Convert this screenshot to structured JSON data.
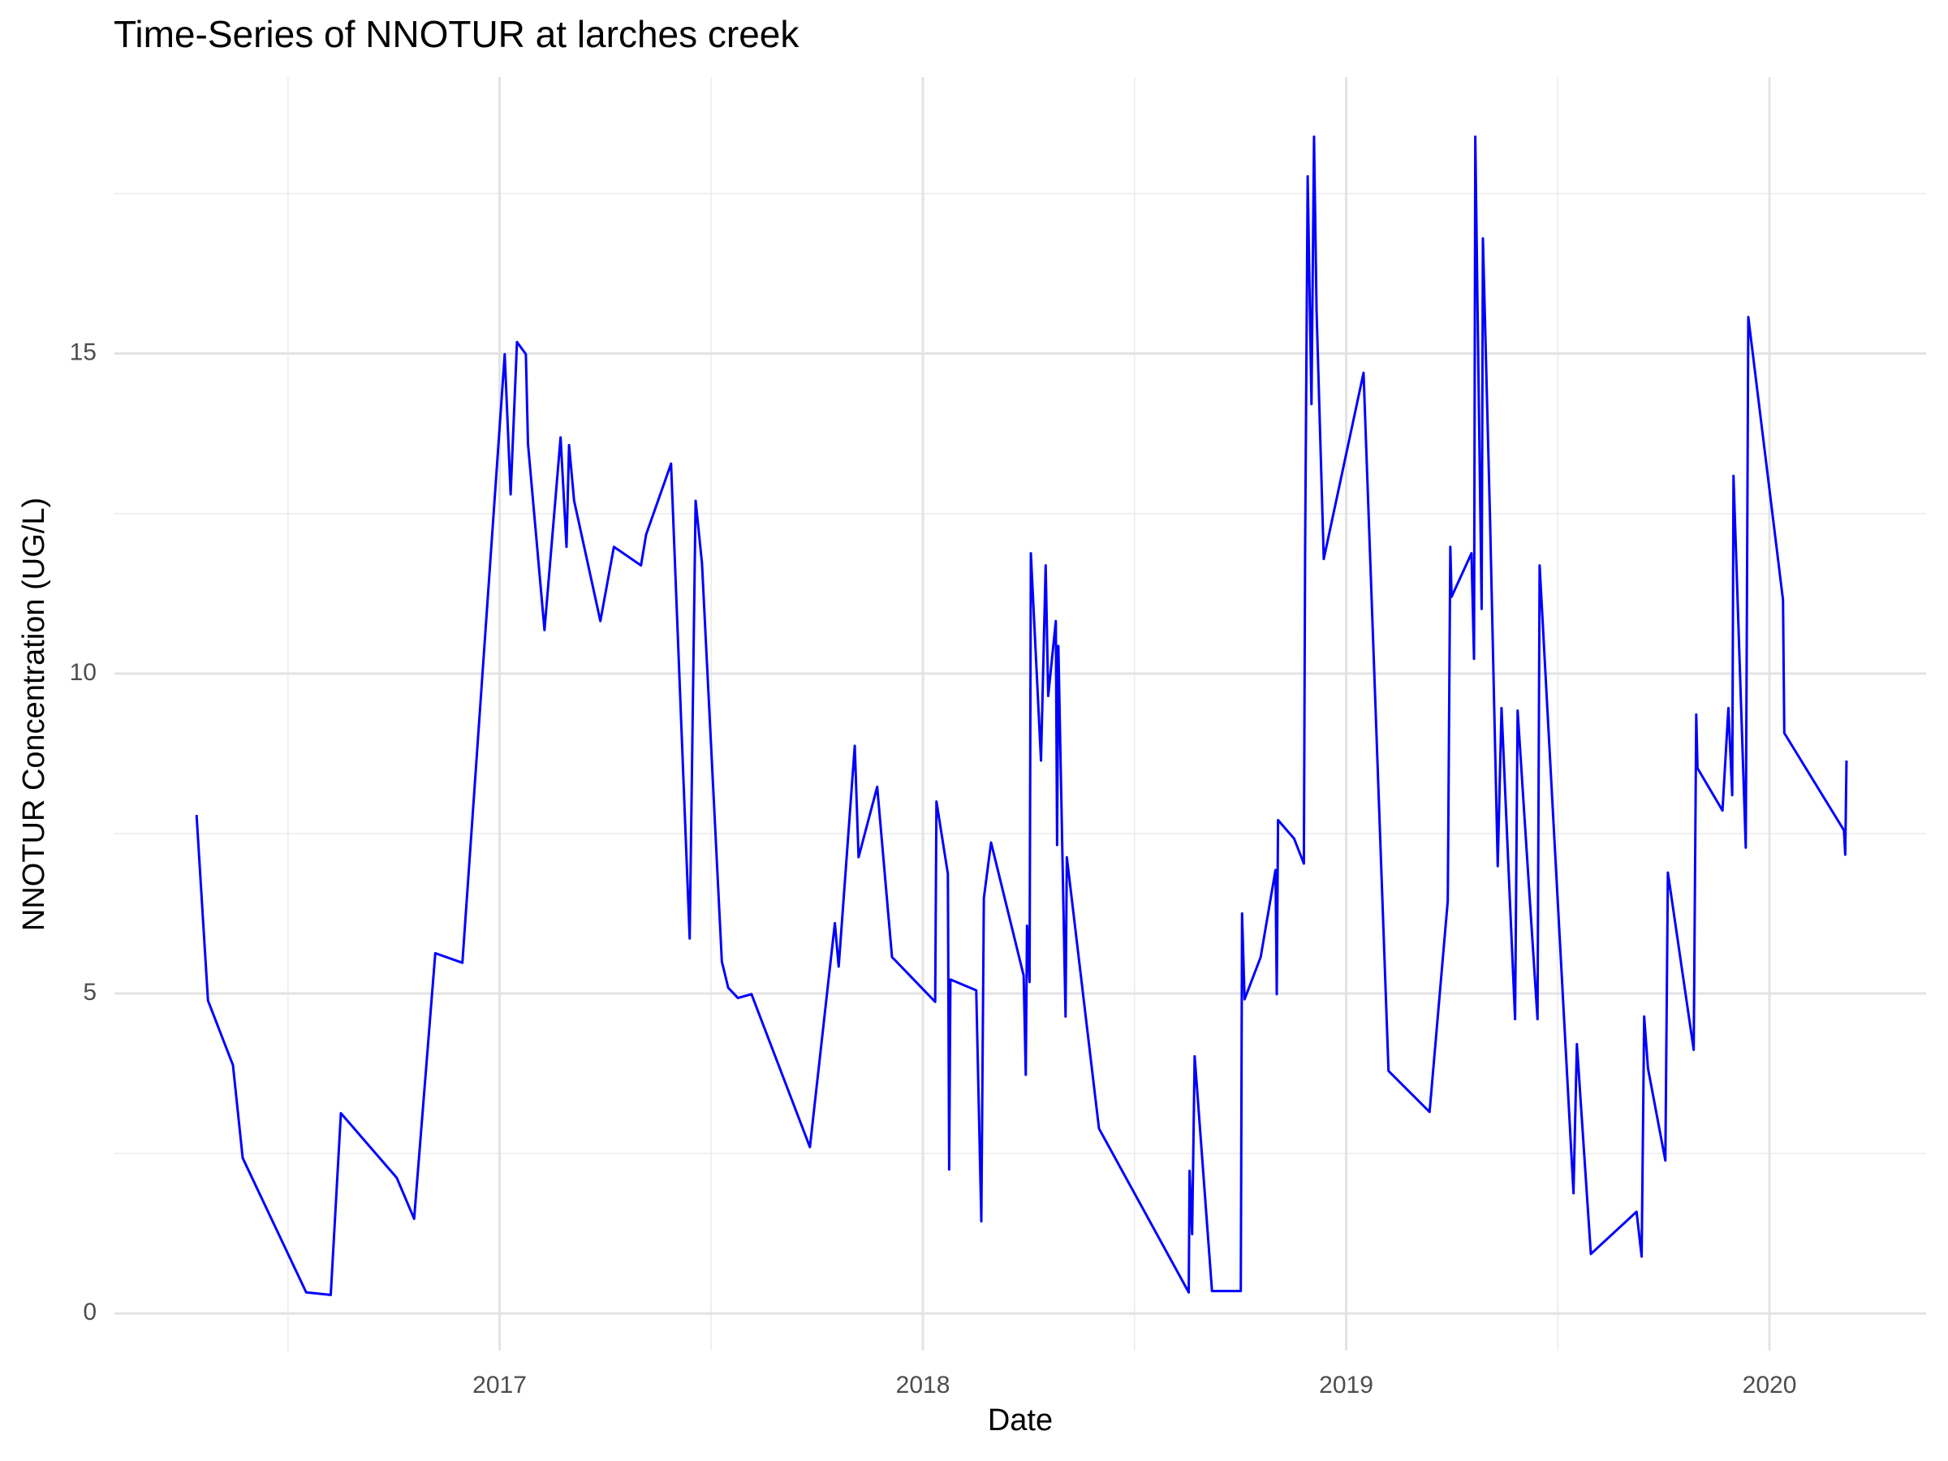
{
  "chart_data": {
    "type": "line",
    "title": "Time-Series of NNOTUR at larches creek",
    "x_label": "Date",
    "y_label": "NNOTUR Concentration (UG/L)",
    "color": "#0000ff",
    "grid": true,
    "xlim": [
      2016.09,
      2020.37
    ],
    "ylim": [
      -0.58,
      19.32
    ],
    "xticks": [
      2017,
      2018,
      2019,
      2020
    ],
    "yticks": [
      0,
      5,
      10,
      15
    ],
    "x_minor_grid": [
      2016.5,
      2017.5,
      2018.5,
      2019.5
    ],
    "y_minor_grid": [
      2.5,
      7.5,
      12.5,
      17.5
    ],
    "x": [
      2016.284,
      2016.311,
      2016.37,
      2016.393,
      2016.543,
      2016.601,
      2016.625,
      2016.757,
      2016.798,
      2016.848,
      2016.912,
      2017.012,
      2017.026,
      2017.041,
      2017.062,
      2017.067,
      2017.106,
      2017.144,
      2017.158,
      2017.164,
      2017.176,
      2017.238,
      2017.27,
      2017.334,
      2017.346,
      2017.405,
      2017.449,
      2017.463,
      2017.478,
      2017.525,
      2017.54,
      2017.563,
      2017.595,
      2017.733,
      2017.792,
      2017.801,
      2017.839,
      2017.848,
      2017.892,
      2017.927,
      2018.029,
      2018.032,
      2018.059,
      2018.062,
      2018.065,
      2018.126,
      2018.138,
      2018.144,
      2018.161,
      2018.238,
      2018.243,
      2018.246,
      2018.252,
      2018.255,
      2018.279,
      2018.29,
      2018.296,
      2018.314,
      2018.317,
      2018.32,
      2018.337,
      2018.34,
      2018.416,
      2018.628,
      2018.63,
      2018.636,
      2018.642,
      2018.683,
      2018.751,
      2018.754,
      2018.76,
      2018.798,
      2018.833,
      2018.836,
      2018.839,
      2018.877,
      2018.9,
      2018.903,
      2018.909,
      2018.918,
      2018.924,
      2018.93,
      2018.947,
      2019.041,
      2019.1,
      2019.197,
      2019.24,
      2019.246,
      2019.249,
      2019.296,
      2019.302,
      2019.305,
      2019.311,
      2019.32,
      2019.323,
      2019.34,
      2019.358,
      2019.367,
      2019.399,
      2019.405,
      2019.452,
      2019.457,
      2019.537,
      2019.545,
      2019.578,
      2019.686,
      2019.698,
      2019.704,
      2019.713,
      2019.754,
      2019.76,
      2019.821,
      2019.827,
      2019.83,
      2019.889,
      2019.903,
      2019.912,
      2019.915,
      2019.944,
      2019.95,
      2020.032,
      2020.035,
      2020.176,
      2020.179,
      2020.182
    ],
    "values": [
      7.79,
      4.89,
      3.88,
      2.43,
      0.33,
      0.29,
      3.13,
      2.12,
      1.48,
      5.63,
      5.48,
      14.99,
      12.8,
      15.18,
      14.99,
      13.59,
      10.68,
      13.69,
      11.98,
      13.57,
      12.7,
      10.82,
      11.98,
      11.69,
      12.17,
      13.28,
      5.86,
      12.7,
      11.73,
      5.5,
      5.09,
      4.93,
      4.99,
      2.6,
      6.1,
      5.42,
      8.87,
      7.13,
      8.23,
      5.57,
      4.87,
      8.0,
      6.87,
      2.25,
      5.22,
      5.05,
      1.44,
      6.49,
      7.36,
      5.28,
      3.73,
      6.06,
      5.18,
      11.88,
      8.64,
      11.69,
      9.65,
      10.82,
      7.32,
      10.43,
      4.64,
      7.13,
      2.89,
      0.33,
      2.23,
      1.24,
      4.02,
      0.35,
      0.35,
      6.25,
      4.91,
      5.57,
      6.93,
      4.99,
      7.71,
      7.42,
      7.03,
      11.98,
      17.77,
      14.21,
      18.39,
      15.67,
      11.79,
      14.7,
      3.79,
      3.15,
      6.45,
      11.98,
      11.2,
      11.88,
      10.23,
      18.39,
      15.38,
      11.01,
      16.8,
      12.37,
      6.99,
      9.46,
      4.6,
      9.42,
      4.6,
      11.69,
      1.88,
      4.21,
      0.93,
      1.59,
      0.89,
      4.64,
      3.83,
      2.39,
      6.89,
      4.12,
      9.36,
      8.52,
      7.86,
      9.46,
      8.1,
      13.09,
      7.28,
      15.57,
      11.15,
      9.07,
      7.55,
      7.17,
      8.64
    ]
  }
}
